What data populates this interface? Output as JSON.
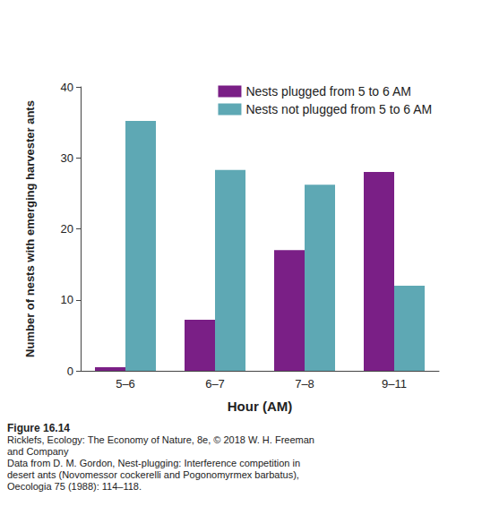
{
  "chart_data": {
    "type": "bar",
    "x_label": "Hour (AM)",
    "y_label": "Number of nests with emerging harvester ants",
    "categories": [
      "5–6",
      "6–7",
      "7–8",
      "9–11"
    ],
    "series": [
      {
        "name": "Nests plugged from 5 to 6 AM",
        "color": "#7a1f86",
        "values": [
          0.5,
          7.2,
          17,
          28
        ]
      },
      {
        "name": "Nests not plugged from 5 to 6 AM",
        "color": "#5ea8b4",
        "values": [
          35.2,
          28.3,
          26.2,
          12
        ]
      }
    ],
    "ylim": [
      0,
      40
    ],
    "yticks": [
      0,
      10,
      20,
      30,
      40
    ],
    "grid": false,
    "legend": "upper right",
    "caption": [
      "Figure 16.14",
      "Ricklefs, Ecology: The Economy of Nature, 8e, © 2018 W. H. Freeman",
      "and Company",
      "Data from D. M. Gordon, Nest-plugging: Interference competition in",
      "desert ants (Novomessor cockerelli and Pogonomyrmex barbatus),",
      "Oecologia 75 (1988): 114–118."
    ]
  }
}
